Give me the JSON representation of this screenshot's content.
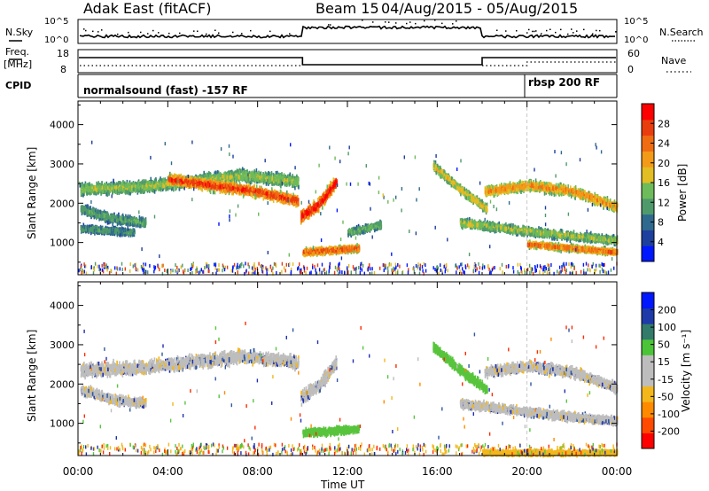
{
  "header": {
    "title": "Adak East (fitACF)",
    "beam": "Beam 15",
    "dates": "04/Aug/2015 - 05/Aug/2015"
  },
  "strip_labels": {
    "nsky": "N.Sky",
    "nsky_hi": "10^5",
    "nsky_lo": "10^0",
    "nsearch": "N.Search",
    "nsearch_hi": "10^5",
    "nsearch_lo": "10^0",
    "freq": "Freq.",
    "freq_unit": "[MHz]",
    "freq_hi": "18",
    "freq_lo": "8",
    "nave": "Nave",
    "nave_hi": "60",
    "nave_lo": "0",
    "cpid": "CPID",
    "cpid_1": "normalsound (fast) -157 RF",
    "cpid_2": "rbsp 200 RF"
  },
  "colors": {
    "power_scale": [
      "#0018ff",
      "#1d3f9e",
      "#2f6a8e",
      "#4f9a6b",
      "#6dbb5a",
      "#e2bd24",
      "#f39a18",
      "#f06c12",
      "#ea3d0e",
      "#ff0000"
    ],
    "velocity_scale": [
      "#0018ff",
      "#1e3aa8",
      "#327a6a",
      "#4cc438",
      "#bdbdbd",
      "#bdbdbd",
      "#f3b71c",
      "#ff8a00",
      "#ff4a00",
      "#ff0000"
    ],
    "ground_scatter": "#bdbdbd"
  },
  "chart_data": [
    {
      "type": "heatmap",
      "name": "power",
      "ylabel": "Slant Range [km]",
      "xlabel": "Time UT",
      "x_ticks": [
        "00:00",
        "04:00",
        "08:00",
        "12:00",
        "16:00",
        "20:00",
        "00:00"
      ],
      "x_range_hours": [
        0,
        24
      ],
      "y_ticks": [
        "1000",
        "2000",
        "3000",
        "4000"
      ],
      "ylim": [
        180,
        4600
      ],
      "colorbar_label": "Power [dB]",
      "colorbar_ticks": [
        "4",
        "8",
        "12",
        "16",
        "20",
        "24",
        "28"
      ],
      "colorbar_range": [
        0,
        30
      ],
      "scatter_regions": [
        {
          "t0": 0.1,
          "t1": 9.8,
          "r_mid": [
            2400,
            2450,
            2600,
            2750,
            2600
          ],
          "spread": 200,
          "level": 12
        },
        {
          "t0": 4.0,
          "t1": 9.8,
          "r_mid": [
            2650,
            2500,
            2350,
            2100
          ],
          "spread": 180,
          "level": 22
        },
        {
          "t0": 0.1,
          "t1": 3.0,
          "r_mid": [
            1900,
            1650,
            1550
          ],
          "spread": 160,
          "level": 9
        },
        {
          "t0": 0.1,
          "t1": 2.5,
          "r_mid": [
            1400,
            1300
          ],
          "spread": 120,
          "level": 8
        },
        {
          "t0": 9.9,
          "t1": 11.5,
          "r_mid": [
            1700,
            2000,
            2600
          ],
          "spread": 220,
          "level": 24
        },
        {
          "t0": 10.0,
          "t1": 12.5,
          "r_mid": [
            800,
            900
          ],
          "spread": 120,
          "level": 20
        },
        {
          "t0": 12.0,
          "t1": 13.5,
          "r_mid": [
            1300,
            1500
          ],
          "spread": 120,
          "level": 10
        },
        {
          "t0": 15.8,
          "t1": 18.2,
          "r_mid": [
            3000,
            2400,
            1900
          ],
          "spread": 150,
          "level": 14
        },
        {
          "t0": 18.1,
          "t1": 24.0,
          "r_mid": [
            2350,
            2500,
            2350,
            1950
          ],
          "spread": 170,
          "level": 17
        },
        {
          "t0": 17.0,
          "t1": 24.0,
          "r_mid": [
            1550,
            1300,
            1100
          ],
          "spread": 140,
          "level": 12
        },
        {
          "t0": 20.0,
          "t1": 24.0,
          "r_mid": [
            1000,
            800
          ],
          "spread": 100,
          "level": 19
        }
      ]
    },
    {
      "type": "heatmap",
      "name": "velocity",
      "ylabel": "Slant Range [km]",
      "xlabel": "Time UT",
      "x_ticks": [
        "00:00",
        "04:00",
        "08:00",
        "12:00",
        "16:00",
        "20:00",
        "00:00"
      ],
      "x_range_hours": [
        0,
        24
      ],
      "y_ticks": [
        "1000",
        "2000",
        "3000",
        "4000"
      ],
      "ylim": [
        180,
        4600
      ],
      "colorbar_label": "Velocity [m s⁻¹]",
      "colorbar_ticks": [
        "200",
        "100",
        "50",
        "15",
        "-15",
        "-50",
        "-100",
        "-200"
      ],
      "colorbar_range": [
        -250,
        250
      ],
      "scatter_regions": [
        {
          "t0": 0.1,
          "t1": 9.8,
          "r_mid": [
            2400,
            2450,
            2600,
            2750,
            2600
          ],
          "spread": 220,
          "level": 0
        },
        {
          "t0": 0.1,
          "t1": 3.0,
          "r_mid": [
            1900,
            1650,
            1550
          ],
          "spread": 160,
          "level": 0
        },
        {
          "t0": 9.9,
          "t1": 11.5,
          "r_mid": [
            1700,
            2000,
            2600
          ],
          "spread": 220,
          "level": 0
        },
        {
          "t0": 10.0,
          "t1": 12.5,
          "r_mid": [
            800,
            900
          ],
          "spread": 120,
          "level": 40
        },
        {
          "t0": 15.8,
          "t1": 18.2,
          "r_mid": [
            3000,
            2400,
            1900
          ],
          "spread": 150,
          "level": 35
        },
        {
          "t0": 18.1,
          "t1": 24.0,
          "r_mid": [
            2350,
            2500,
            2350,
            1950
          ],
          "spread": 170,
          "level": 0
        },
        {
          "t0": 17.0,
          "t1": 24.0,
          "r_mid": [
            1550,
            1300,
            1100
          ],
          "spread": 140,
          "level": 0
        },
        {
          "t0": 18.0,
          "t1": 24.0,
          "r_mid": [
            300,
            300
          ],
          "spread": 80,
          "level": -30
        }
      ]
    }
  ]
}
